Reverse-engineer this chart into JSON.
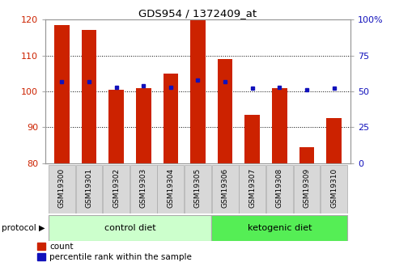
{
  "title": "GDS954 / 1372409_at",
  "samples": [
    "GSM19300",
    "GSM19301",
    "GSM19302",
    "GSM19303",
    "GSM19304",
    "GSM19305",
    "GSM19306",
    "GSM19307",
    "GSM19308",
    "GSM19309",
    "GSM19310"
  ],
  "red_values": [
    118.5,
    117.0,
    100.5,
    101.0,
    105.0,
    120.0,
    109.0,
    93.5,
    101.0,
    84.5,
    92.5
  ],
  "blue_pct": [
    57,
    57,
    53,
    54,
    53,
    58,
    57,
    52,
    53,
    51,
    52
  ],
  "ylim_left": [
    80,
    120
  ],
  "ylim_right": [
    0,
    100
  ],
  "yticks_left": [
    80,
    90,
    100,
    110,
    120
  ],
  "yticks_right": [
    0,
    25,
    50,
    75,
    100
  ],
  "ytick_labels_right": [
    "0",
    "25",
    "50",
    "75",
    "100%"
  ],
  "bar_color": "#cc2200",
  "dot_color": "#1111bb",
  "bg_color": "#ffffff",
  "tick_label_color_left": "#cc2200",
  "tick_label_color_right": "#1111bb",
  "control_bg": "#ccffcc",
  "ketogenic_bg": "#55ee55",
  "sample_bg": "#d8d8d8",
  "bar_width": 0.55,
  "base_value": 80
}
